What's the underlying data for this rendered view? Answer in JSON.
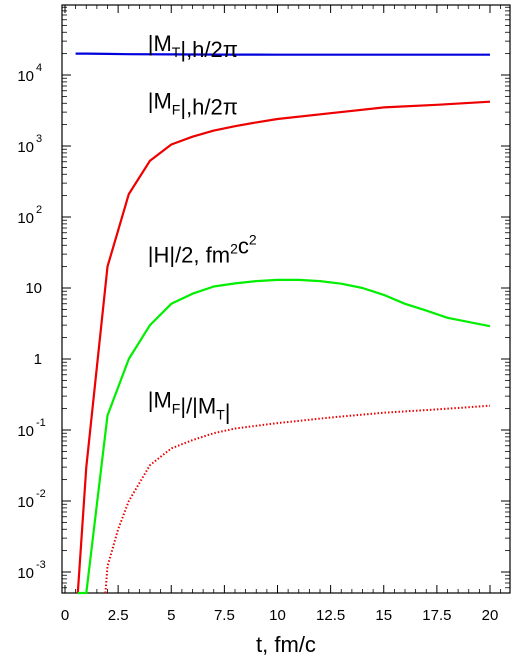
{
  "chart_data": {
    "type": "line",
    "xlabel": "t, fm/c",
    "ylabel": "",
    "xlim": [
      0,
      21
    ],
    "ylim_log10": [
      -3.4,
      5.0
    ],
    "y_scale": "log",
    "x_ticks": [
      "0",
      "2.5",
      "5",
      "7.5",
      "10",
      "12.5",
      "15",
      "17.5",
      "20"
    ],
    "y_ticks": [
      {
        "base": "10",
        "exp": "4",
        "log": 4
      },
      {
        "base": "10",
        "exp": "3",
        "log": 3
      },
      {
        "base": "10",
        "exp": "2",
        "log": 2
      },
      {
        "base": "10",
        "exp": "",
        "log": 1
      },
      {
        "base": "1",
        "exp": "",
        "log": 0
      },
      {
        "base": "10",
        "exp": "-1",
        "log": -1
      },
      {
        "base": "10",
        "exp": "-2",
        "log": -2
      },
      {
        "base": "10",
        "exp": "-3",
        "log": -3
      }
    ],
    "annotations": [
      {
        "parts": [
          {
            "t": "|M"
          },
          {
            "t": "T",
            "sub": true
          },
          {
            "t": "|,h/2π"
          }
        ],
        "x": 8.6,
        "y_log": 4.34
      },
      {
        "parts": [
          {
            "t": "|M"
          },
          {
            "t": "F",
            "sub": true
          },
          {
            "t": "|,h/2π"
          }
        ],
        "x": 8.6,
        "y_log": 3.53
      },
      {
        "parts": [
          {
            "t": "|H|/2, fm"
          },
          {
            "t": "2",
            "sup": true
          },
          {
            "t": "c"
          },
          {
            "t": "2",
            "sup": true
          }
        ],
        "x": 8.6,
        "y_log": 1.36
      },
      {
        "parts": [
          {
            "t": "|M"
          },
          {
            "t": "F",
            "sub": true
          },
          {
            "t": "|/|M"
          },
          {
            "t": "T",
            "sub": true
          },
          {
            "t": "|"
          }
        ],
        "x": 8.6,
        "y_log": -0.68
      }
    ],
    "series": [
      {
        "color": "#0000dd",
        "dash": "solid",
        "x": [
          0.5,
          1,
          2,
          3,
          5,
          7.5,
          10,
          12.5,
          15,
          17.5,
          20
        ],
        "y": [
          20000,
          20000,
          19800,
          19600,
          19500,
          19400,
          19300,
          19300,
          19300,
          19300,
          19300
        ]
      },
      {
        "color": "#ee0000",
        "dash": "solid",
        "x": [
          0.6,
          1,
          2,
          3,
          4,
          5,
          6,
          7,
          8,
          9,
          10,
          12.5,
          15,
          17.5,
          20
        ],
        "y": [
          0.0005,
          0.03,
          20,
          210,
          620,
          1050,
          1350,
          1650,
          1900,
          2150,
          2400,
          2900,
          3500,
          3800,
          4200
        ]
      },
      {
        "color": "#00ee00",
        "dash": "solid",
        "x": [
          0.6,
          1,
          2,
          3,
          4,
          5,
          6,
          7,
          8,
          9,
          10,
          11,
          12,
          13,
          14,
          15,
          16,
          17,
          18,
          20
        ],
        "y": [
          0.0005,
          0.0005,
          0.16,
          1.0,
          3.0,
          6.0,
          8.3,
          10.5,
          11.6,
          12.5,
          13.0,
          13.0,
          12.5,
          11.5,
          10.0,
          8.0,
          6.0,
          4.8,
          3.8,
          2.9
        ]
      },
      {
        "color": "#ee0000",
        "dash": "dotted",
        "x": [
          1.9,
          2,
          2.5,
          3,
          4,
          5,
          6,
          7,
          8,
          10,
          12.5,
          15,
          17.5,
          20
        ],
        "y": [
          0.0005,
          0.0012,
          0.004,
          0.01,
          0.032,
          0.055,
          0.072,
          0.09,
          0.105,
          0.125,
          0.15,
          0.175,
          0.195,
          0.22
        ]
      }
    ]
  }
}
